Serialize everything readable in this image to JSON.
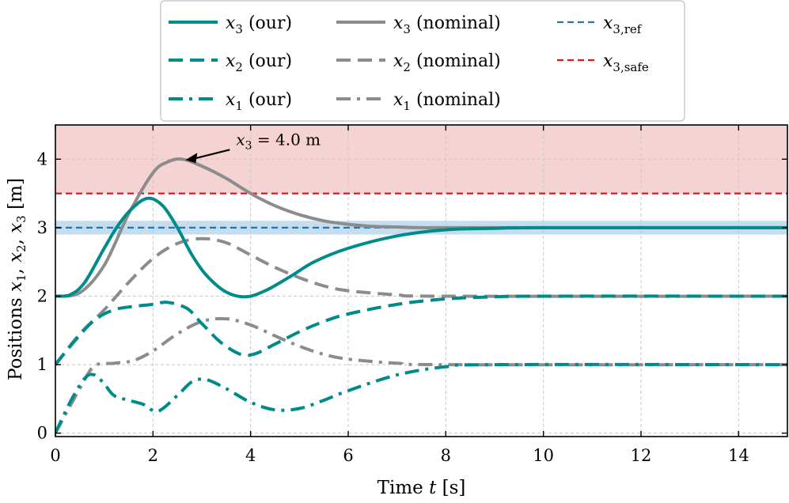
{
  "chart_data": {
    "type": "line",
    "xlabel": "Time t [s]",
    "ylabel": "Positions x1, x2, x3 [m]",
    "xlim": [
      0,
      15
    ],
    "ylim": [
      -0.05,
      4.5
    ],
    "xticks": [
      0,
      2,
      4,
      6,
      8,
      10,
      12,
      14
    ],
    "yticks": [
      0,
      1,
      2,
      3,
      4
    ],
    "grid": true,
    "legend_position": "top-center",
    "safe_region": {
      "from": 3.5,
      "to": 4.5,
      "color": "#f5d3d3"
    },
    "ref_band": {
      "from": 2.9,
      "to": 3.1,
      "color": "#c5ddef"
    },
    "hlines": [
      {
        "name": "x3,ref",
        "y": 3.0,
        "color": "#1f77b4"
      },
      {
        "name": "x3,safe",
        "y": 3.5,
        "color": "#e8141c"
      }
    ],
    "annotation": {
      "text": "x3 = 4.0 m",
      "point": [
        2.6,
        4.0
      ]
    },
    "colors": {
      "our": "#008b8b",
      "nominal": "#8c8c8c"
    },
    "series": [
      {
        "name": "x3 (nominal)",
        "style": "solid",
        "color_key": "nominal",
        "x": [
          0,
          0.5,
          1.0,
          1.5,
          2.0,
          2.3,
          2.6,
          3.0,
          3.5,
          4.0,
          4.5,
          5.0,
          5.5,
          6.0,
          6.5,
          7.0,
          7.5,
          8.0,
          9.0,
          15.0
        ],
        "y": [
          2.0,
          2.05,
          2.45,
          3.2,
          3.8,
          3.96,
          4.0,
          3.9,
          3.72,
          3.5,
          3.32,
          3.19,
          3.1,
          3.05,
          3.02,
          3.01,
          3.0,
          3.0,
          3.0,
          3.0
        ]
      },
      {
        "name": "x2 (nominal)",
        "style": "dashed",
        "color_key": "nominal",
        "x": [
          0,
          0.5,
          1.0,
          1.5,
          2.0,
          2.5,
          3.0,
          3.5,
          4.0,
          4.5,
          5.0,
          5.5,
          6.0,
          7.0,
          8.0,
          15.0
        ],
        "y": [
          1.0,
          1.45,
          1.8,
          2.2,
          2.55,
          2.77,
          2.84,
          2.78,
          2.6,
          2.42,
          2.27,
          2.15,
          2.08,
          2.02,
          2.0,
          2.0
        ]
      },
      {
        "name": "x1 (nominal)",
        "style": "dashdot",
        "color_key": "nominal",
        "x": [
          0,
          0.5,
          0.8,
          1.2,
          1.6,
          2.0,
          2.5,
          3.0,
          3.5,
          4.0,
          4.5,
          5.0,
          5.5,
          6.0,
          7.0,
          8.0,
          15.0
        ],
        "y": [
          0.0,
          0.65,
          0.98,
          1.02,
          1.06,
          1.2,
          1.45,
          1.63,
          1.67,
          1.58,
          1.42,
          1.27,
          1.15,
          1.08,
          1.02,
          1.0,
          1.0
        ]
      },
      {
        "name": "x3 (our)",
        "style": "solid",
        "color_key": "our",
        "x": [
          0,
          0.3,
          0.6,
          1.0,
          1.3,
          1.6,
          1.9,
          2.2,
          2.5,
          2.8,
          3.1,
          3.5,
          3.9,
          4.3,
          4.8,
          5.3,
          6.0,
          7.0,
          8.0,
          9.0,
          10.0,
          15.0
        ],
        "y": [
          2.0,
          2.02,
          2.2,
          2.7,
          3.05,
          3.3,
          3.43,
          3.32,
          3.0,
          2.6,
          2.3,
          2.06,
          1.99,
          2.08,
          2.28,
          2.5,
          2.7,
          2.88,
          2.97,
          2.99,
          3.0,
          3.0
        ]
      },
      {
        "name": "x2 (our)",
        "style": "dashed",
        "color_key": "our",
        "x": [
          0,
          0.4,
          0.8,
          1.2,
          1.6,
          2.0,
          2.3,
          2.7,
          3.0,
          3.4,
          3.8,
          4.1,
          4.5,
          5.0,
          5.5,
          6.0,
          7.0,
          8.0,
          9.0,
          10.0,
          15.0
        ],
        "y": [
          1.0,
          1.35,
          1.65,
          1.8,
          1.85,
          1.88,
          1.91,
          1.82,
          1.6,
          1.32,
          1.15,
          1.16,
          1.3,
          1.48,
          1.63,
          1.74,
          1.88,
          1.96,
          1.99,
          2.0,
          2.0
        ]
      },
      {
        "name": "x1 (our)",
        "style": "dashdot",
        "color_key": "our",
        "x": [
          0,
          0.3,
          0.6,
          0.8,
          1.0,
          1.2,
          1.5,
          1.8,
          2.1,
          2.5,
          2.8,
          3.1,
          3.5,
          4.0,
          4.5,
          5.0,
          5.5,
          6.0,
          7.0,
          8.0,
          9.0,
          15.0
        ],
        "y": [
          0.0,
          0.45,
          0.8,
          0.85,
          0.72,
          0.55,
          0.48,
          0.42,
          0.32,
          0.55,
          0.75,
          0.78,
          0.65,
          0.45,
          0.34,
          0.36,
          0.48,
          0.62,
          0.85,
          0.97,
          1.0,
          1.0
        ]
      }
    ],
    "legend": {
      "columns": [
        [
          {
            "series": "x3 (our)",
            "sym": "x",
            "sub": "3",
            "suffix": "(our)"
          },
          {
            "series": "x2 (our)",
            "sym": "x",
            "sub": "2",
            "suffix": "(our)"
          },
          {
            "series": "x1 (our)",
            "sym": "x",
            "sub": "1",
            "suffix": "(our)"
          }
        ],
        [
          {
            "series": "x3 (nominal)",
            "sym": "x",
            "sub": "3",
            "suffix": "(nominal)"
          },
          {
            "series": "x2 (nominal)",
            "sym": "x",
            "sub": "2",
            "suffix": "(nominal)"
          },
          {
            "series": "x1 (nominal)",
            "sym": "x",
            "sub": "1",
            "suffix": "(nominal)"
          }
        ],
        [
          {
            "series": "x3,ref",
            "sym": "x",
            "sub": "3,ref",
            "suffix": ""
          },
          {
            "series": "x3,safe",
            "sym": "x",
            "sub": "3,safe",
            "suffix": ""
          }
        ]
      ]
    },
    "text": {
      "xlabel_main": "Time",
      "xlabel_var": "t",
      "xlabel_unit": "[s]",
      "ylabel_main": "Positions",
      "ylabel_vars": [
        "x",
        "1",
        ", ",
        "x",
        "2",
        ", ",
        "x",
        "3"
      ],
      "ylabel_unit": "[m]",
      "annotation_var": "x",
      "annotation_sub": "3",
      "annotation_rest": " = 4.0 m"
    }
  }
}
